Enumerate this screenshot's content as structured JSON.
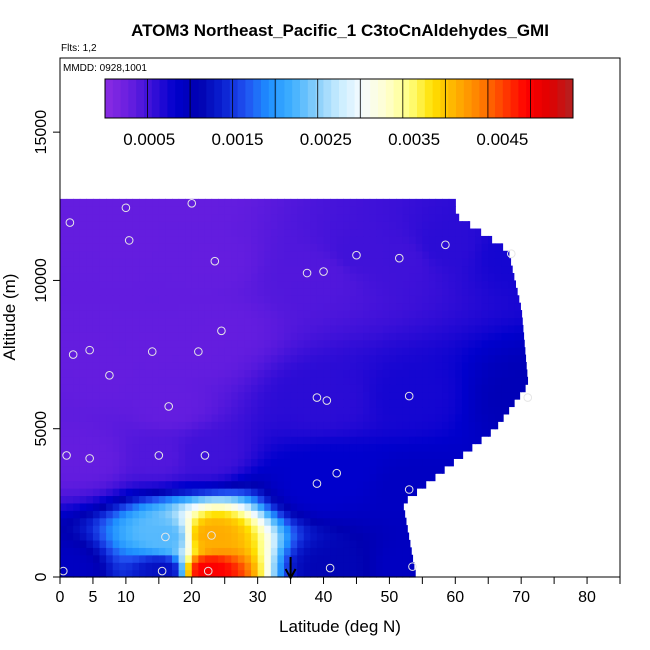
{
  "chart_data": {
    "type": "heatmap",
    "title": "ATOM3 Northeast_Pacific_1 C3toCnAldehydes_GMI",
    "flights_note": "Flts: 1,2",
    "date_note": "MMDD: 0928,1001",
    "xlabel": "Latitude (deg N)",
    "ylabel": "Altitude (m)",
    "xlim": [
      0,
      85
    ],
    "ylim": [
      0,
      17500
    ],
    "x_ticks": [
      0,
      5,
      10,
      20,
      30,
      40,
      50,
      60,
      70,
      80
    ],
    "x_minor_ticks": [
      15,
      25,
      35,
      45,
      55,
      65,
      75,
      85
    ],
    "y_ticks": [
      0,
      5000,
      10000,
      15000
    ],
    "colorbar": {
      "range": [
        0,
        0.0053
      ],
      "tick_values": [
        0.0005,
        0.0015,
        0.0025,
        0.0035,
        0.0045
      ],
      "tick_labels": [
        "0.0005",
        "0.0015",
        "0.0025",
        "0.0035",
        "0.0045"
      ],
      "colors": [
        "#8a2be2",
        "#6a1fe0",
        "#3a10d8",
        "#0000cd",
        "#0000b0",
        "#0a1fd0",
        "#2050f0",
        "#1e90ff",
        "#40b0ff",
        "#87cefa",
        "#c8ecff",
        "#f5fbff",
        "#ffffd0",
        "#ffff80",
        "#ffe000",
        "#ffb000",
        "#ff8000",
        "#ff4000",
        "#ff0000",
        "#e00000",
        "#b22222"
      ]
    },
    "vertical_marker_lat": 35,
    "series": [
      {
        "lat": 0.5,
        "alt": 200,
        "value": 0.0009
      },
      {
        "lat": 15.5,
        "alt": 200,
        "value": 0.0012
      },
      {
        "lat": 22.5,
        "alt": 200,
        "value": 0.0048
      },
      {
        "lat": 41,
        "alt": 300,
        "value": 0.0011
      },
      {
        "lat": 53.5,
        "alt": 350,
        "value": 0.0009
      },
      {
        "lat": 16,
        "alt": 1350,
        "value": 0.0022
      },
      {
        "lat": 23,
        "alt": 1400,
        "value": 0.004
      },
      {
        "lat": 53,
        "alt": 2950,
        "value": 0.0009
      },
      {
        "lat": 39,
        "alt": 3150,
        "value": 0.0008
      },
      {
        "lat": 42,
        "alt": 3500,
        "value": 0.0008
      },
      {
        "lat": 1,
        "alt": 4100,
        "value": 0.0003
      },
      {
        "lat": 4.5,
        "alt": 4000,
        "value": 0.0003
      },
      {
        "lat": 15,
        "alt": 4100,
        "value": 0.0004
      },
      {
        "lat": 22,
        "alt": 4100,
        "value": 0.0005
      },
      {
        "lat": 16.5,
        "alt": 5750,
        "value": 0.0003
      },
      {
        "lat": 39,
        "alt": 6050,
        "value": 0.0006
      },
      {
        "lat": 40.5,
        "alt": 5950,
        "value": 0.0006
      },
      {
        "lat": 53,
        "alt": 6100,
        "value": 0.0007
      },
      {
        "lat": 71,
        "alt": 6050,
        "value": 0.001
      },
      {
        "lat": 7.5,
        "alt": 6800,
        "value": 0.0003
      },
      {
        "lat": 2,
        "alt": 7500,
        "value": 0.0003
      },
      {
        "lat": 4.5,
        "alt": 7650,
        "value": 0.0003
      },
      {
        "lat": 14,
        "alt": 7600,
        "value": 0.0003
      },
      {
        "lat": 21,
        "alt": 7600,
        "value": 0.0003
      },
      {
        "lat": 24.5,
        "alt": 8300,
        "value": 0.0003
      },
      {
        "lat": 37.5,
        "alt": 10250,
        "value": 0.0004
      },
      {
        "lat": 40,
        "alt": 10300,
        "value": 0.0004
      },
      {
        "lat": 23.5,
        "alt": 10650,
        "value": 0.0003
      },
      {
        "lat": 45,
        "alt": 10850,
        "value": 0.0005
      },
      {
        "lat": 51.5,
        "alt": 10750,
        "value": 0.0005
      },
      {
        "lat": 10.5,
        "alt": 11350,
        "value": 0.0003
      },
      {
        "lat": 58.5,
        "alt": 11200,
        "value": 0.0006
      },
      {
        "lat": 68.5,
        "alt": 10900,
        "value": 0.0007
      },
      {
        "lat": 1.5,
        "alt": 11950,
        "value": 0.0003
      },
      {
        "lat": 10,
        "alt": 12450,
        "value": 0.0003
      },
      {
        "lat": 20,
        "alt": 12600,
        "value": 0.0003
      }
    ]
  }
}
